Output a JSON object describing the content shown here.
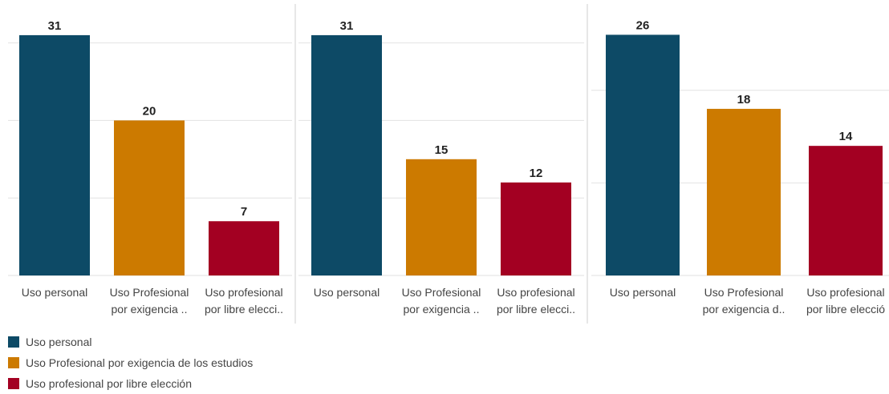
{
  "colors": {
    "uso_personal": "#0d4a66",
    "profesional_exigencia": "#cc7a00",
    "profesional_libre": "#a30022"
  },
  "chart_data": [
    {
      "type": "bar",
      "categories": [
        [
          "Uso personal"
        ],
        [
          "Uso Profesional",
          "por exigencia .."
        ],
        [
          "Uso profesional",
          "por libre elecci.."
        ]
      ],
      "values": [
        31,
        20,
        7
      ],
      "ylim": [
        0,
        34
      ],
      "grid": true,
      "gridlines": [
        10,
        20,
        30
      ],
      "title": "",
      "xlabel": "",
      "ylabel": ""
    },
    {
      "type": "bar",
      "categories": [
        [
          "Uso personal"
        ],
        [
          "Uso Profesional",
          "por exigencia .."
        ],
        [
          "Uso profesional",
          "por libre elecci.."
        ]
      ],
      "values": [
        31,
        15,
        12
      ],
      "ylim": [
        0,
        34
      ],
      "grid": true,
      "gridlines": [
        10,
        20,
        30
      ],
      "title": "",
      "xlabel": "",
      "ylabel": ""
    },
    {
      "type": "bar",
      "categories": [
        [
          "Uso personal"
        ],
        [
          "Uso Profesional",
          "por exigencia d.."
        ],
        [
          "Uso profesional",
          "por libre elecció"
        ]
      ],
      "values": [
        26,
        18,
        14
      ],
      "ylim": [
        0,
        28
      ],
      "grid": true,
      "gridlines": [
        10,
        20
      ],
      "title": "",
      "xlabel": "",
      "ylabel": ""
    }
  ],
  "legend": {
    "position": "bottom-left",
    "items": [
      {
        "label": "Uso personal",
        "color": "#0d4a66"
      },
      {
        "label": "Uso Profesional por exigencia de los estudios",
        "color": "#cc7a00"
      },
      {
        "label": "Uso profesional por libre elección",
        "color": "#a30022"
      }
    ]
  }
}
